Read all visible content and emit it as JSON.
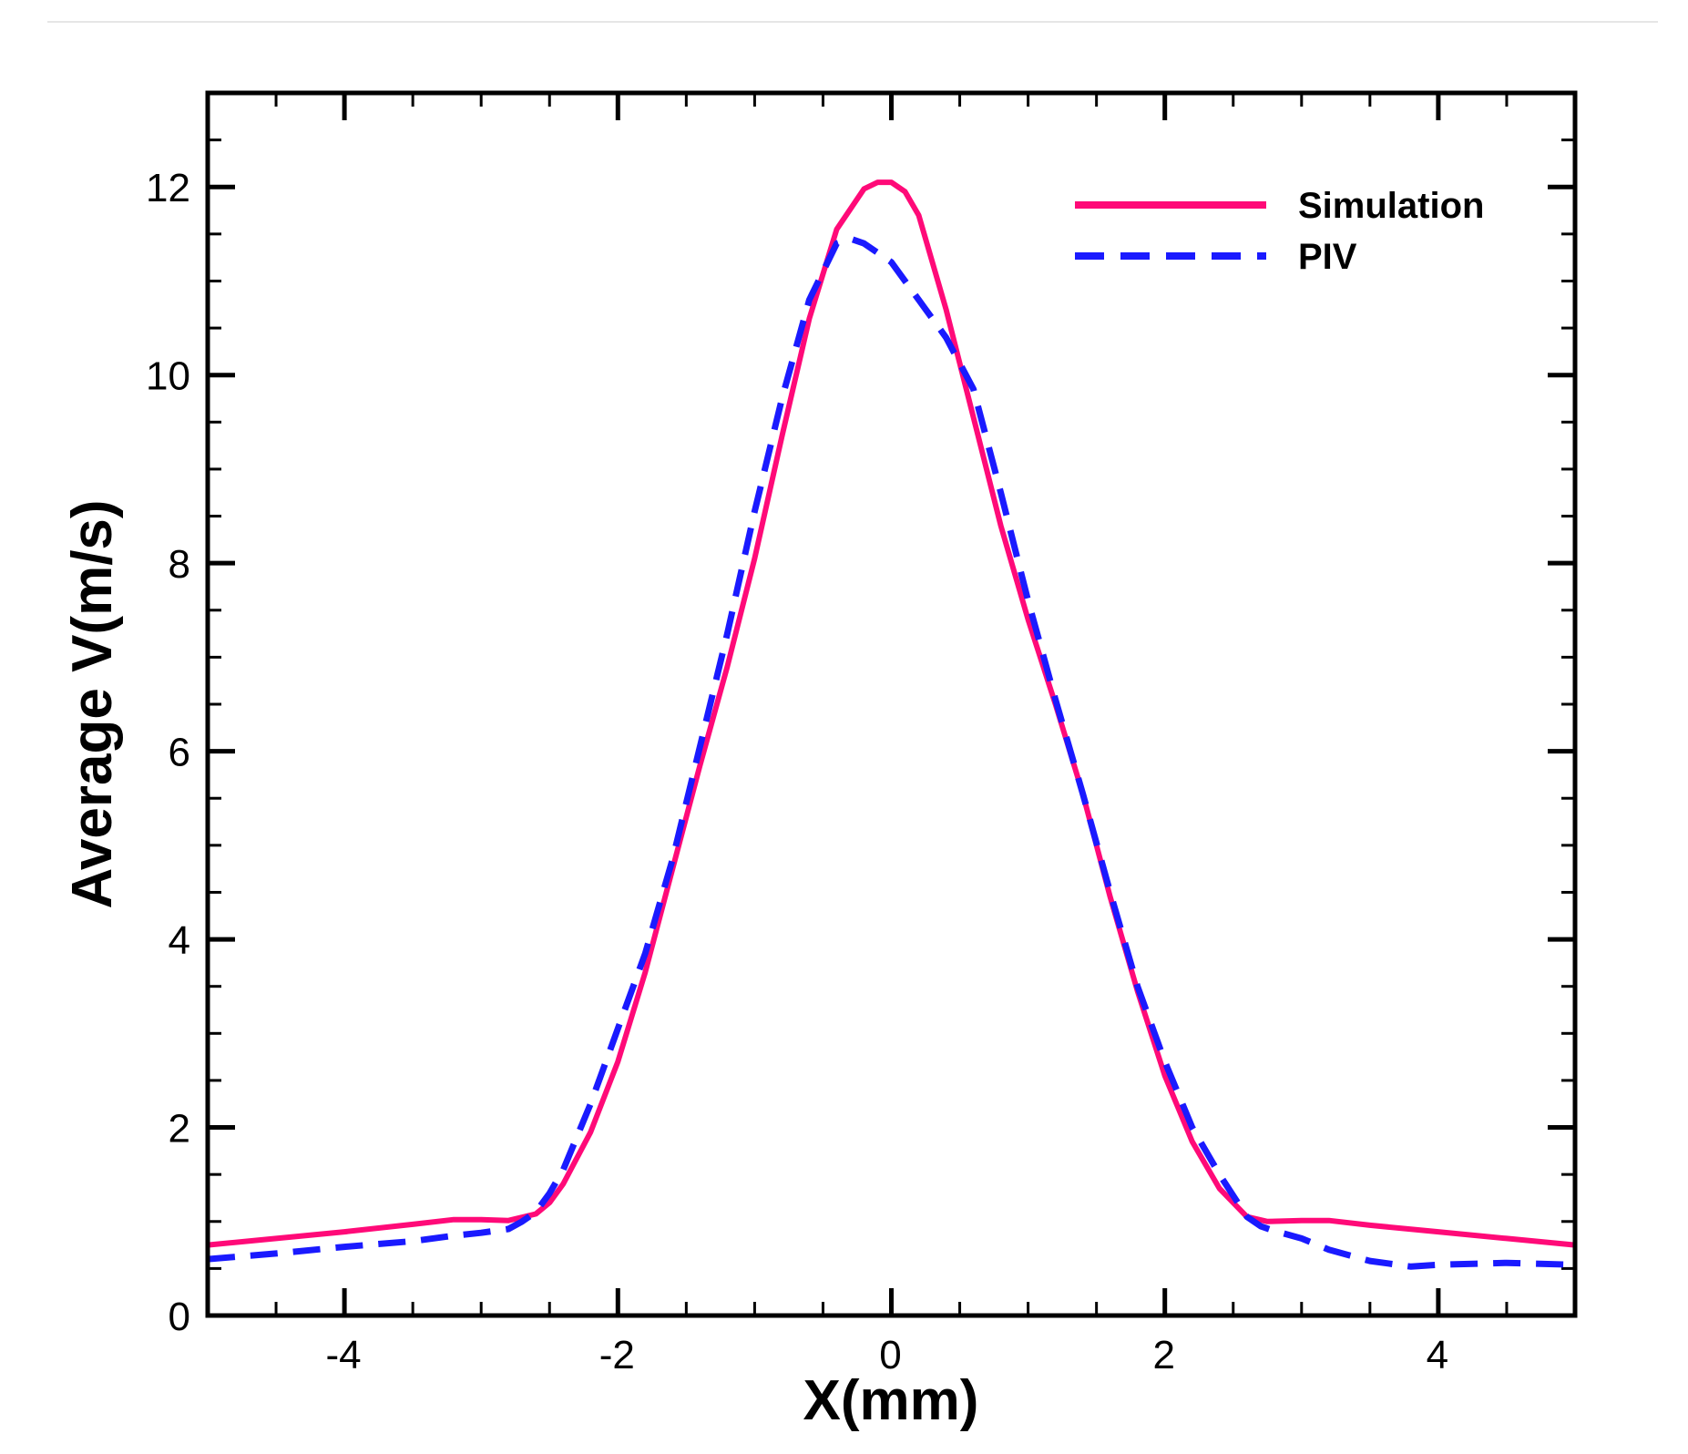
{
  "chart_data": {
    "type": "line",
    "xlabel": "X(mm)",
    "ylabel": "Average V(m/s)",
    "xlim": [
      -5,
      5
    ],
    "ylim": [
      0,
      13
    ],
    "x_major_ticks": [
      -4,
      -2,
      0,
      2,
      4
    ],
    "x_tick_labels": [
      "-4",
      "-2",
      "0",
      "2",
      "4"
    ],
    "y_major_ticks": [
      0,
      2,
      4,
      6,
      8,
      10,
      12
    ],
    "y_tick_labels": [
      "0",
      "2",
      "4",
      "6",
      "8",
      "10",
      "12"
    ],
    "legend_position": "top-right",
    "series": [
      {
        "name": "Simulation",
        "color": "#ff0a78",
        "style": "solid",
        "x": [
          -5,
          -4.5,
          -4,
          -3.5,
          -3.2,
          -3.0,
          -2.8,
          -2.6,
          -2.5,
          -2.4,
          -2.2,
          -2.0,
          -1.8,
          -1.6,
          -1.4,
          -1.2,
          -1.0,
          -0.8,
          -0.6,
          -0.4,
          -0.2,
          -0.1,
          0.0,
          0.1,
          0.2,
          0.4,
          0.6,
          0.8,
          1.0,
          1.2,
          1.4,
          1.6,
          1.8,
          2.0,
          2.2,
          2.4,
          2.6,
          2.75,
          3.0,
          3.2,
          3.5,
          4.0,
          4.5,
          5.0
        ],
        "y": [
          0.75,
          0.82,
          0.89,
          0.97,
          1.02,
          1.02,
          1.01,
          1.08,
          1.2,
          1.4,
          1.95,
          2.7,
          3.65,
          4.75,
          5.85,
          6.9,
          8.05,
          9.35,
          10.6,
          11.55,
          11.98,
          12.05,
          12.05,
          11.95,
          11.7,
          10.7,
          9.55,
          8.4,
          7.4,
          6.5,
          5.55,
          4.45,
          3.45,
          2.55,
          1.85,
          1.35,
          1.05,
          1.0,
          1.01,
          1.01,
          0.96,
          0.89,
          0.82,
          0.75
        ]
      },
      {
        "name": "PIV",
        "color": "#1a1aff",
        "style": "dashed",
        "x": [
          -5,
          -4.5,
          -4,
          -3.5,
          -3.2,
          -3.0,
          -2.8,
          -2.7,
          -2.6,
          -2.5,
          -2.4,
          -2.2,
          -2.0,
          -1.8,
          -1.6,
          -1.4,
          -1.2,
          -1.0,
          -0.8,
          -0.6,
          -0.4,
          -0.3,
          -0.2,
          -0.1,
          0.0,
          0.2,
          0.4,
          0.6,
          0.8,
          1.0,
          1.2,
          1.4,
          1.6,
          1.8,
          2.0,
          2.2,
          2.4,
          2.6,
          2.7,
          2.8,
          3.0,
          3.2,
          3.5,
          3.8,
          4.0,
          4.5,
          5.0
        ],
        "y": [
          0.6,
          0.66,
          0.73,
          0.79,
          0.85,
          0.88,
          0.92,
          1.0,
          1.1,
          1.3,
          1.55,
          2.25,
          3.05,
          3.85,
          4.85,
          6.05,
          7.25,
          8.55,
          9.75,
          10.8,
          11.4,
          11.45,
          11.4,
          11.3,
          11.2,
          10.8,
          10.4,
          9.85,
          8.75,
          7.6,
          6.55,
          5.55,
          4.5,
          3.5,
          2.7,
          2.0,
          1.5,
          1.05,
          0.95,
          0.9,
          0.82,
          0.7,
          0.58,
          0.52,
          0.54,
          0.56,
          0.54
        ]
      }
    ]
  }
}
